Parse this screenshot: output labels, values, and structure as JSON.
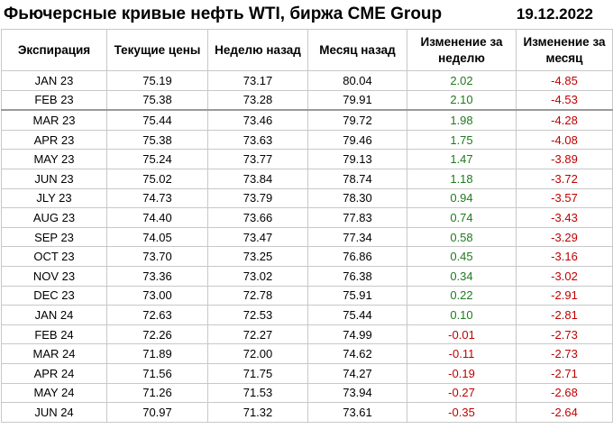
{
  "title": "Фьючерсные кривые нефть WTI, биржа CME Group",
  "date": "19.12.2022",
  "colors": {
    "positive": "#1f7a1f",
    "negative": "#c00000"
  },
  "columns": [
    "Экспирация",
    "Текущие цены",
    "Неделю назад",
    "Месяц назад",
    "Изменение за неделю",
    "Изменение за месяц"
  ],
  "rows": [
    [
      "JAN 23",
      "75.19",
      "73.17",
      "80.04",
      "2.02",
      "-4.85"
    ],
    [
      "FEB 23",
      "75.38",
      "73.28",
      "79.91",
      "2.10",
      "-4.53"
    ],
    [
      "MAR 23",
      "75.44",
      "73.46",
      "79.72",
      "1.98",
      "-4.28"
    ],
    [
      "APR 23",
      "75.38",
      "73.63",
      "79.46",
      "1.75",
      "-4.08"
    ],
    [
      "MAY 23",
      "75.24",
      "73.77",
      "79.13",
      "1.47",
      "-3.89"
    ],
    [
      "JUN 23",
      "75.02",
      "73.84",
      "78.74",
      "1.18",
      "-3.72"
    ],
    [
      "JLY 23",
      "74.73",
      "73.79",
      "78.30",
      "0.94",
      "-3.57"
    ],
    [
      "AUG 23",
      "74.40",
      "73.66",
      "77.83",
      "0.74",
      "-3.43"
    ],
    [
      "SEP 23",
      "74.05",
      "73.47",
      "77.34",
      "0.58",
      "-3.29"
    ],
    [
      "OCT 23",
      "73.70",
      "73.25",
      "76.86",
      "0.45",
      "-3.16"
    ],
    [
      "NOV 23",
      "73.36",
      "73.02",
      "76.38",
      "0.34",
      "-3.02"
    ],
    [
      "DEC 23",
      "73.00",
      "72.78",
      "75.91",
      "0.22",
      "-2.91"
    ],
    [
      "JAN 24",
      "72.63",
      "72.53",
      "75.44",
      "0.10",
      "-2.81"
    ],
    [
      "FEB 24",
      "72.26",
      "72.27",
      "74.99",
      "-0.01",
      "-2.73"
    ],
    [
      "MAR 24",
      "71.89",
      "72.00",
      "74.62",
      "-0.11",
      "-2.73"
    ],
    [
      "APR 24",
      "71.56",
      "71.75",
      "74.27",
      "-0.19",
      "-2.71"
    ],
    [
      "MAY 24",
      "71.26",
      "71.53",
      "73.94",
      "-0.27",
      "-2.68"
    ],
    [
      "JUN 24",
      "70.97",
      "71.32",
      "73.61",
      "-0.35",
      "-2.64"
    ]
  ]
}
